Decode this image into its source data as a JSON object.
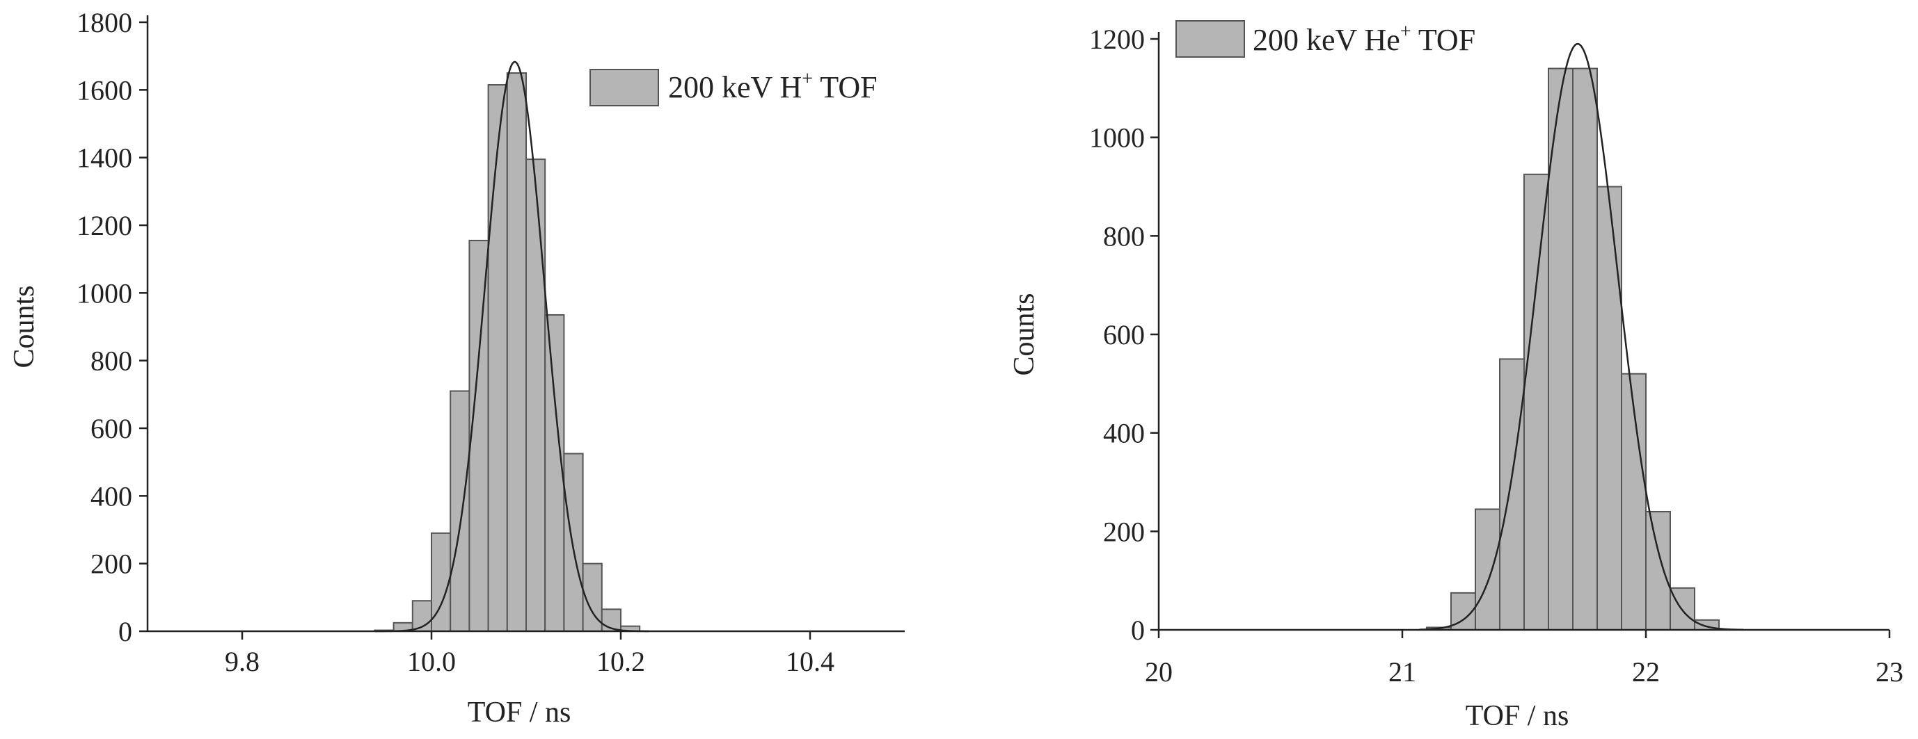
{
  "chart_data": [
    {
      "type": "bar",
      "subtype": "histogram-with-gaussian-fit",
      "xlabel": "TOF / ns",
      "ylabel": "Counts",
      "xlim": [
        9.7,
        10.5
      ],
      "ylim": [
        0,
        1800
      ],
      "xticks": [
        9.8,
        10.0,
        10.2,
        10.4
      ],
      "xtick_labels": [
        "9.8",
        "10.0",
        "10.2",
        "10.4"
      ],
      "yticks": [
        0,
        200,
        400,
        600,
        800,
        1000,
        1200,
        1400,
        1600,
        1800
      ],
      "ytick_labels": [
        "0",
        "200",
        "400",
        "600",
        "800",
        "1000",
        "1200",
        "1400",
        "1600",
        "1800"
      ],
      "legend": {
        "text": "200 keV H",
        "sup": "+",
        "suffix": " TOF",
        "position": "top-right"
      },
      "bin_width": 0.02,
      "bins": [
        {
          "x": 9.94,
          "y": 3
        },
        {
          "x": 9.96,
          "y": 25
        },
        {
          "x": 9.98,
          "y": 90
        },
        {
          "x": 10.0,
          "y": 290
        },
        {
          "x": 10.02,
          "y": 710
        },
        {
          "x": 10.04,
          "y": 1155
        },
        {
          "x": 10.06,
          "y": 1615
        },
        {
          "x": 10.08,
          "y": 1650
        },
        {
          "x": 10.1,
          "y": 1395
        },
        {
          "x": 10.12,
          "y": 935
        },
        {
          "x": 10.14,
          "y": 525
        },
        {
          "x": 10.16,
          "y": 200
        },
        {
          "x": 10.18,
          "y": 65
        },
        {
          "x": 10.2,
          "y": 15
        }
      ],
      "fit": {
        "mean": 10.088,
        "sigma": 0.0315,
        "amplitude": 1683,
        "range": [
          9.94,
          10.23
        ]
      },
      "grid": false,
      "bar_color": "#b5b5b5",
      "bar_stroke": "#555555",
      "line_color": "#222222"
    },
    {
      "type": "bar",
      "subtype": "histogram-with-gaussian-fit",
      "xlabel": "TOF / ns",
      "ylabel": "Counts",
      "xlim": [
        20,
        23
      ],
      "ylim": [
        0,
        1200
      ],
      "xticks": [
        20,
        21,
        22,
        23
      ],
      "xtick_labels": [
        "20",
        "21",
        "22",
        "23"
      ],
      "yticks": [
        0,
        200,
        400,
        600,
        800,
        1000,
        1200
      ],
      "ytick_labels": [
        "0",
        "200",
        "400",
        "600",
        "800",
        "1000",
        "1200"
      ],
      "legend": {
        "text": "200 keV He",
        "sup": "+",
        "suffix": " TOF",
        "position": "top-left"
      },
      "bin_width": 0.1,
      "bins": [
        {
          "x": 21.1,
          "y": 5
        },
        {
          "x": 21.2,
          "y": 75
        },
        {
          "x": 21.3,
          "y": 245
        },
        {
          "x": 21.4,
          "y": 550
        },
        {
          "x": 21.5,
          "y": 925
        },
        {
          "x": 21.6,
          "y": 1140
        },
        {
          "x": 21.7,
          "y": 1140
        },
        {
          "x": 21.8,
          "y": 900
        },
        {
          "x": 21.9,
          "y": 520
        },
        {
          "x": 22.0,
          "y": 240
        },
        {
          "x": 22.1,
          "y": 85
        },
        {
          "x": 22.2,
          "y": 20
        }
      ],
      "fit": {
        "mean": 21.72,
        "sigma": 0.165,
        "amplitude": 1190,
        "range": [
          21.07,
          22.4
        ]
      },
      "grid": false,
      "bar_color": "#b5b5b5",
      "bar_stroke": "#555555",
      "line_color": "#222222"
    }
  ]
}
